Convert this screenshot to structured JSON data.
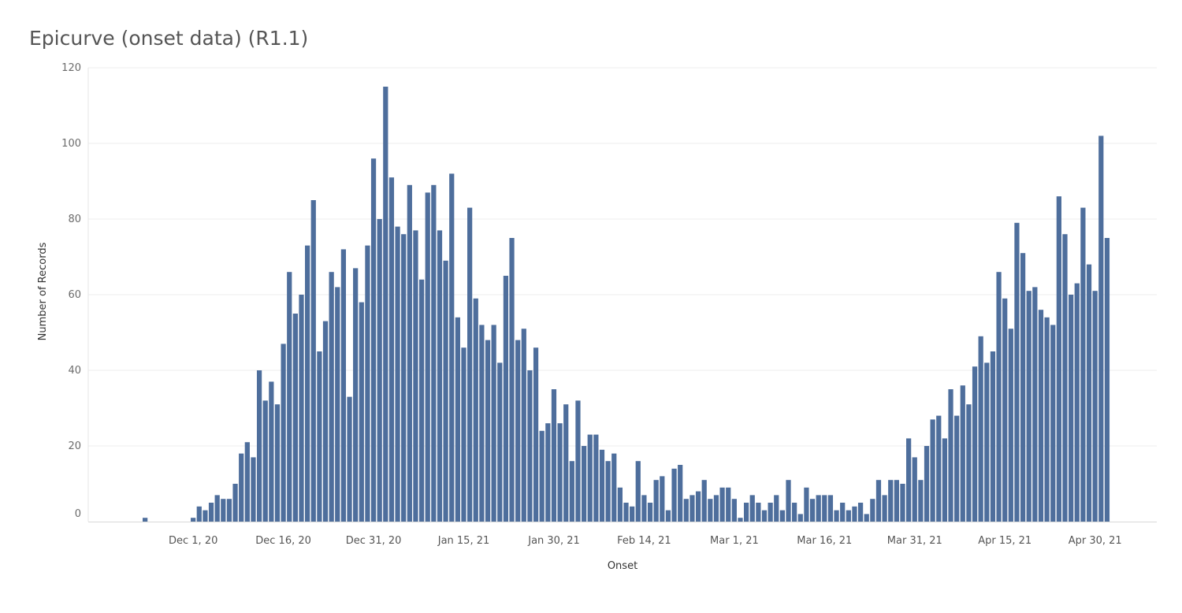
{
  "chart_data": {
    "type": "bar",
    "title": "Epicurve (onset data) (R1.1)",
    "xlabel": "Onset",
    "ylabel": "Number of Records",
    "x_start_date": "2020-11-23",
    "x_end_date": "2021-05-05",
    "ylim": [
      0,
      120
    ],
    "y_ticks": [
      0,
      20,
      40,
      60,
      80,
      100,
      120
    ],
    "x_ticks": [
      {
        "label": "Dec 1, 20",
        "date": "2020-12-01"
      },
      {
        "label": "Dec 16, 20",
        "date": "2020-12-16"
      },
      {
        "label": "Dec 31, 20",
        "date": "2020-12-31"
      },
      {
        "label": "Jan 15, 21",
        "date": "2021-01-15"
      },
      {
        "label": "Jan 30, 21",
        "date": "2021-01-30"
      },
      {
        "label": "Feb 14, 21",
        "date": "2021-02-14"
      },
      {
        "label": "Mar 1, 21",
        "date": "2021-03-01"
      },
      {
        "label": "Mar 16, 21",
        "date": "2021-03-16"
      },
      {
        "label": "Mar 31, 21",
        "date": "2021-03-31"
      },
      {
        "label": "Apr 15, 21",
        "date": "2021-04-15"
      },
      {
        "label": "Apr 30, 21",
        "date": "2021-04-30"
      }
    ],
    "grid": true,
    "bar_color": "#4e6e9c",
    "values": [
      1,
      0,
      0,
      0,
      0,
      0,
      0,
      0,
      1,
      4,
      3,
      5,
      7,
      6,
      6,
      10,
      18,
      21,
      17,
      40,
      32,
      37,
      31,
      47,
      66,
      55,
      60,
      73,
      85,
      45,
      53,
      66,
      62,
      72,
      33,
      67,
      58,
      73,
      96,
      80,
      115,
      91,
      78,
      76,
      89,
      77,
      64,
      87,
      89,
      77,
      69,
      92,
      54,
      46,
      83,
      59,
      52,
      48,
      52,
      42,
      65,
      75,
      48,
      51,
      40,
      46,
      24,
      26,
      35,
      26,
      31,
      16,
      32,
      20,
      23,
      23,
      19,
      16,
      18,
      9,
      5,
      4,
      16,
      7,
      5,
      11,
      12,
      3,
      14,
      15,
      6,
      7,
      8,
      11,
      6,
      7,
      9,
      9,
      6,
      1,
      5,
      7,
      5,
      3,
      5,
      7,
      3,
      11,
      5,
      2,
      9,
      6,
      7,
      7,
      7,
      3,
      5,
      3,
      4,
      5,
      2,
      6,
      11,
      7,
      11,
      11,
      10,
      22,
      17,
      11,
      20,
      27,
      28,
      22,
      35,
      28,
      36,
      31,
      41,
      49,
      42,
      45,
      66,
      59,
      51,
      79,
      71,
      61,
      62,
      56,
      54,
      52,
      86,
      76,
      60,
      63,
      83,
      68,
      61,
      102,
      75
    ]
  }
}
